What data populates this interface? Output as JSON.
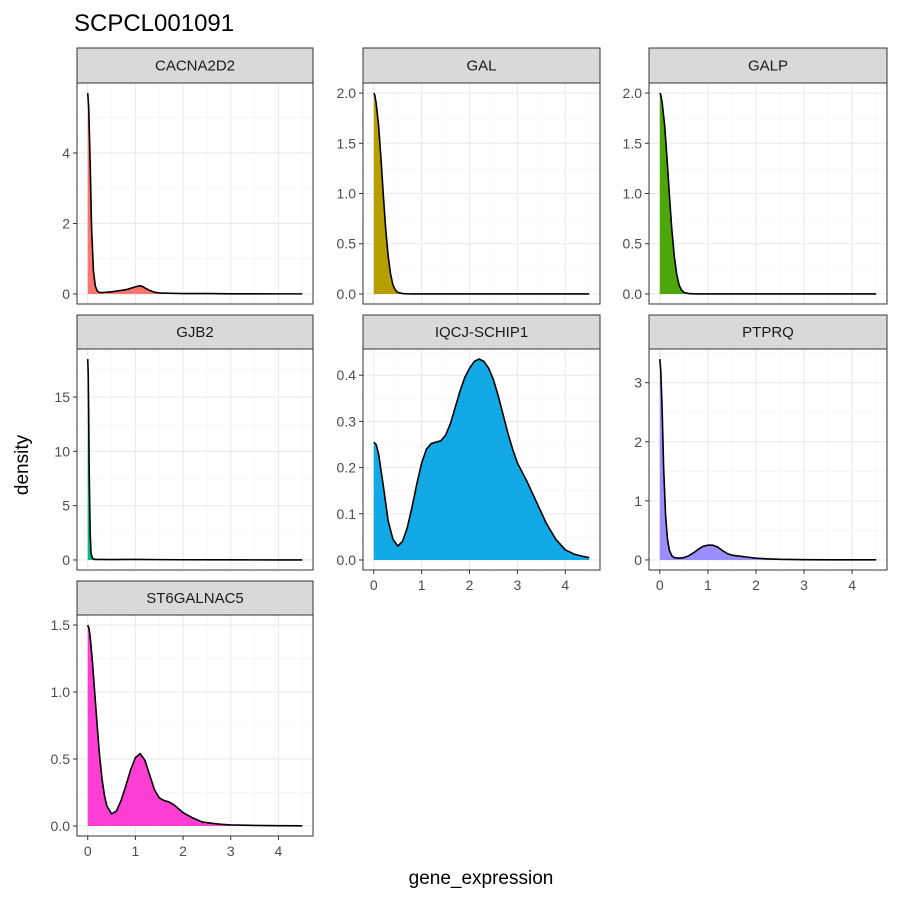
{
  "chart_data": {
    "type": "area",
    "title": "SCPCL001091",
    "xlabel": "gene_expression",
    "ylabel": "density",
    "grid": true,
    "legend": "none",
    "x_ticks": [
      0,
      1,
      2,
      3,
      4
    ],
    "xlim": [
      0,
      4.5
    ],
    "panels": [
      {
        "name": "CACNA2D2",
        "color": "#F8766D",
        "ylim": [
          0,
          5.7
        ],
        "y_ticks": [
          0,
          2,
          4
        ],
        "y_tick_labels": [
          "0",
          "2",
          "4"
        ],
        "x": [
          0,
          0.02,
          0.05,
          0.08,
          0.12,
          0.16,
          0.2,
          0.25,
          0.3,
          0.4,
          0.5,
          0.6,
          0.7,
          0.8,
          0.9,
          1.0,
          1.05,
          1.1,
          1.15,
          1.2,
          1.3,
          1.4,
          1.5,
          1.7,
          2.0,
          2.5,
          3.0,
          3.5,
          4.0,
          4.5
        ],
        "y": [
          5.7,
          5.3,
          3.8,
          1.9,
          0.65,
          0.22,
          0.08,
          0.04,
          0.04,
          0.05,
          0.06,
          0.08,
          0.1,
          0.12,
          0.16,
          0.2,
          0.22,
          0.23,
          0.21,
          0.17,
          0.1,
          0.05,
          0.03,
          0.02,
          0.01,
          0.01,
          0.005,
          0.003,
          0.002,
          0.002
        ]
      },
      {
        "name": "GAL",
        "color": "#B79F00",
        "ylim": [
          0,
          2.0
        ],
        "y_ticks": [
          0,
          0.5,
          1.0,
          1.5,
          2.0
        ],
        "y_tick_labels": [
          "0.0",
          "0.5",
          "1.0",
          "1.5",
          "2.0"
        ],
        "x": [
          0,
          0.02,
          0.05,
          0.1,
          0.15,
          0.2,
          0.25,
          0.3,
          0.35,
          0.4,
          0.45,
          0.5,
          0.6,
          0.7,
          0.8,
          1.0,
          1.5,
          2.0,
          3.0,
          4.0,
          4.5
        ],
        "y": [
          2.0,
          1.98,
          1.9,
          1.68,
          1.35,
          0.98,
          0.64,
          0.38,
          0.2,
          0.09,
          0.04,
          0.015,
          0.004,
          0.001,
          0.0,
          0.0,
          0.0,
          0.0,
          0.0,
          0.0,
          0.0
        ]
      },
      {
        "name": "GALP",
        "color": "#4DA60A",
        "ylim": [
          0,
          2.0
        ],
        "y_ticks": [
          0,
          0.5,
          1.0,
          1.5,
          2.0
        ],
        "y_tick_labels": [
          "0.0",
          "0.5",
          "1.0",
          "1.5",
          "2.0"
        ],
        "x": [
          0,
          0.02,
          0.05,
          0.1,
          0.15,
          0.2,
          0.25,
          0.3,
          0.35,
          0.4,
          0.45,
          0.5,
          0.6,
          0.7,
          0.8,
          1.0,
          1.5,
          2.0,
          3.0,
          4.0,
          4.5
        ],
        "y": [
          2.0,
          1.98,
          1.9,
          1.68,
          1.35,
          0.98,
          0.64,
          0.38,
          0.2,
          0.09,
          0.04,
          0.015,
          0.004,
          0.001,
          0.0,
          0.0,
          0.0,
          0.0,
          0.0,
          0.0,
          0.0
        ]
      },
      {
        "name": "GJB2",
        "color": "#00BE86",
        "ylim": [
          0,
          18.5
        ],
        "y_ticks": [
          0,
          5,
          10,
          15
        ],
        "y_tick_labels": [
          "0",
          "5",
          "10",
          "15"
        ],
        "x": [
          0,
          0.01,
          0.02,
          0.03,
          0.05,
          0.07,
          0.1,
          0.15,
          0.2,
          0.5,
          1.0,
          1.5,
          2.0,
          3.0,
          4.0,
          4.5
        ],
        "y": [
          18.5,
          17.2,
          13.5,
          8.5,
          2.6,
          0.6,
          0.15,
          0.05,
          0.05,
          0.04,
          0.05,
          0.03,
          0.02,
          0.01,
          0.005,
          0.005
        ]
      },
      {
        "name": "IQCJ-SCHIP1",
        "color": "#13A9E6",
        "ylim": [
          0,
          0.435
        ],
        "y_ticks": [
          0,
          0.1,
          0.2,
          0.3,
          0.4
        ],
        "y_tick_labels": [
          "0.0",
          "0.1",
          "0.2",
          "0.3",
          "0.4"
        ],
        "x": [
          0,
          0.05,
          0.1,
          0.2,
          0.3,
          0.4,
          0.5,
          0.6,
          0.7,
          0.8,
          0.9,
          1.0,
          1.1,
          1.2,
          1.3,
          1.4,
          1.5,
          1.6,
          1.7,
          1.8,
          1.9,
          2.0,
          2.1,
          2.2,
          2.3,
          2.4,
          2.5,
          2.6,
          2.7,
          2.8,
          2.9,
          3.0,
          3.2,
          3.4,
          3.6,
          3.8,
          4.0,
          4.2,
          4.4,
          4.5
        ],
        "y": [
          0.255,
          0.25,
          0.23,
          0.16,
          0.085,
          0.045,
          0.03,
          0.04,
          0.07,
          0.115,
          0.165,
          0.21,
          0.24,
          0.252,
          0.255,
          0.258,
          0.27,
          0.295,
          0.33,
          0.365,
          0.395,
          0.415,
          0.43,
          0.435,
          0.43,
          0.415,
          0.39,
          0.355,
          0.315,
          0.275,
          0.24,
          0.21,
          0.17,
          0.125,
          0.08,
          0.045,
          0.022,
          0.012,
          0.007,
          0.005
        ]
      },
      {
        "name": "PTPRQ",
        "color": "#9C8DFF",
        "ylim": [
          0,
          3.4
        ],
        "y_ticks": [
          0,
          1,
          2,
          3
        ],
        "y_tick_labels": [
          "0",
          "1",
          "2",
          "3"
        ],
        "x": [
          0,
          0.02,
          0.05,
          0.08,
          0.12,
          0.16,
          0.2,
          0.25,
          0.3,
          0.4,
          0.5,
          0.6,
          0.7,
          0.8,
          0.9,
          1.0,
          1.1,
          1.2,
          1.3,
          1.4,
          1.5,
          1.6,
          1.8,
          2.0,
          2.2,
          2.5,
          3.0,
          3.5,
          4.0,
          4.5
        ],
        "y": [
          3.4,
          3.2,
          2.5,
          1.55,
          0.75,
          0.35,
          0.16,
          0.07,
          0.04,
          0.03,
          0.04,
          0.07,
          0.12,
          0.18,
          0.23,
          0.25,
          0.25,
          0.22,
          0.16,
          0.11,
          0.08,
          0.07,
          0.05,
          0.03,
          0.02,
          0.01,
          0.005,
          0.003,
          0.002,
          0.002
        ]
      },
      {
        "name": "ST6GALNAC5",
        "color": "#FC3FD2",
        "ylim": [
          0,
          1.5
        ],
        "y_ticks": [
          0,
          0.5,
          1.0,
          1.5
        ],
        "y_tick_labels": [
          "0.0",
          "0.5",
          "1.0",
          "1.5"
        ],
        "x": [
          0,
          0.03,
          0.06,
          0.1,
          0.15,
          0.2,
          0.25,
          0.3,
          0.35,
          0.4,
          0.5,
          0.6,
          0.7,
          0.8,
          0.9,
          1.0,
          1.1,
          1.2,
          1.3,
          1.4,
          1.5,
          1.6,
          1.7,
          1.8,
          1.9,
          2.0,
          2.2,
          2.4,
          2.6,
          2.8,
          3.0,
          3.5,
          4.0,
          4.5
        ],
        "y": [
          1.5,
          1.47,
          1.38,
          1.22,
          0.98,
          0.74,
          0.52,
          0.35,
          0.23,
          0.15,
          0.09,
          0.11,
          0.19,
          0.3,
          0.42,
          0.51,
          0.54,
          0.49,
          0.38,
          0.27,
          0.21,
          0.19,
          0.18,
          0.16,
          0.13,
          0.1,
          0.06,
          0.03,
          0.02,
          0.012,
          0.008,
          0.004,
          0.002,
          0.001
        ]
      }
    ]
  }
}
